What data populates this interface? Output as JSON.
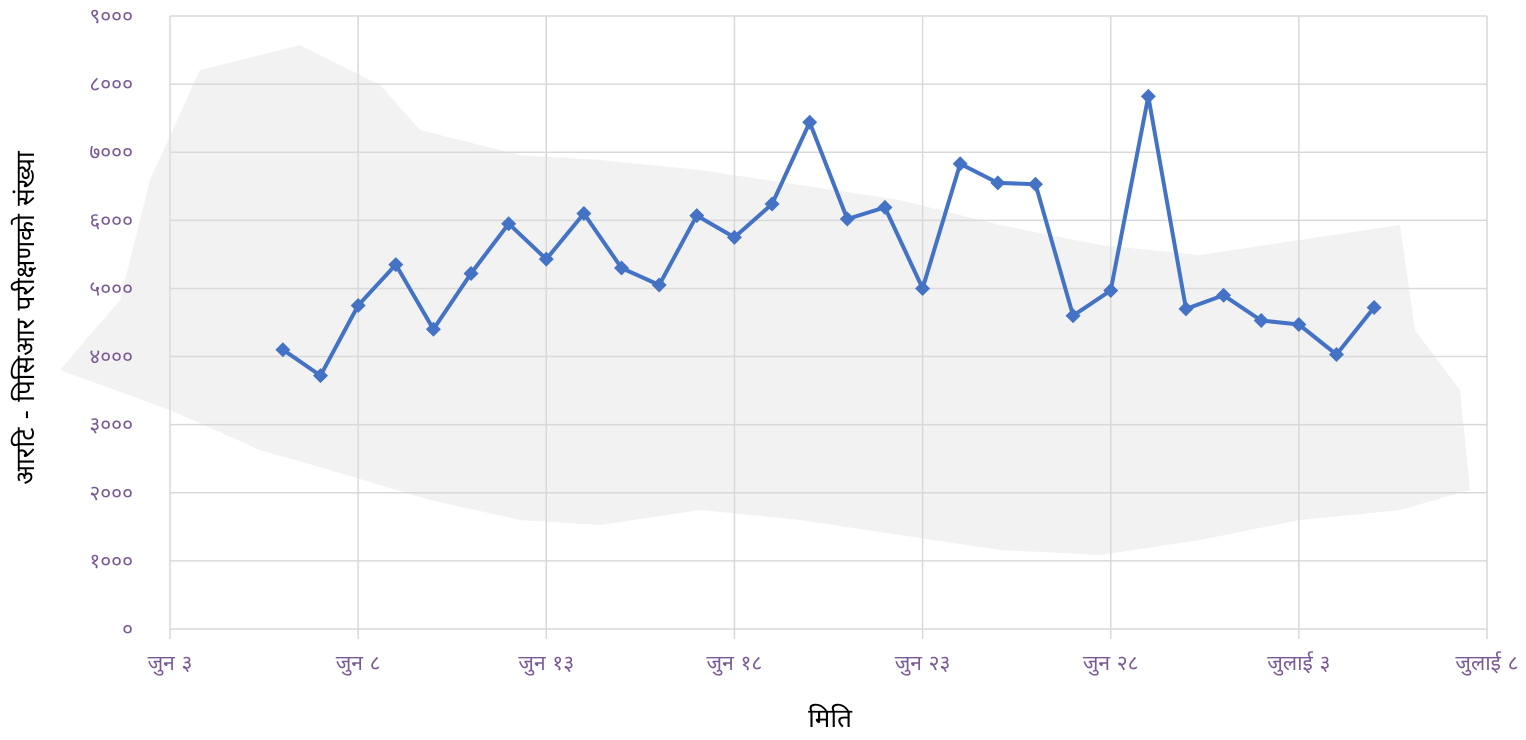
{
  "colors": {
    "series": "#4472C4",
    "grid": "#d9d9d9",
    "tick_label": "#7a5a94",
    "map_background": "#f2f2f2"
  },
  "chart_data": {
    "type": "line",
    "xlabel": "मिति",
    "ylabel": "आरटि - पिसिआर परीक्षणको संख्या",
    "x_tick_labels": [
      "जुन ३",
      "जुन ८",
      "जुन १३",
      "जुन १८",
      "जुन २३",
      "जुन २८",
      "जुलाई ३",
      "जुलाई ८"
    ],
    "y_tick_labels": [
      "०",
      "१०००",
      "२०००",
      "३०००",
      "४०००",
      "५०००",
      "६०००",
      "७०००",
      "८०००",
      "९०००"
    ],
    "x_range": [
      "2020-06-03",
      "2020-07-08"
    ],
    "ylim": [
      0,
      9000
    ],
    "grid": true,
    "legend": "none",
    "series": [
      {
        "x": [
          "2020-06-06",
          "2020-06-07",
          "2020-06-08",
          "2020-06-09",
          "2020-06-10",
          "2020-06-11",
          "2020-06-12",
          "2020-06-13",
          "2020-06-14",
          "2020-06-15",
          "2020-06-16",
          "2020-06-17",
          "2020-06-18",
          "2020-06-19",
          "2020-06-20",
          "2020-06-21",
          "2020-06-22",
          "2020-06-23",
          "2020-06-24",
          "2020-06-25",
          "2020-06-26",
          "2020-06-27",
          "2020-06-28",
          "2020-06-29",
          "2020-06-30",
          "2020-07-01",
          "2020-07-02",
          "2020-07-03",
          "2020-07-04",
          "2020-07-05"
        ],
        "values": [
          4100,
          3720,
          4750,
          5350,
          4400,
          5220,
          5950,
          5430,
          6100,
          5300,
          5050,
          6070,
          5750,
          6240,
          7440,
          6020,
          6190,
          5000,
          6830,
          6550,
          6530,
          4600,
          4970,
          7820,
          4700,
          4900,
          4530,
          4470,
          4030,
          4720
        ]
      }
    ]
  }
}
